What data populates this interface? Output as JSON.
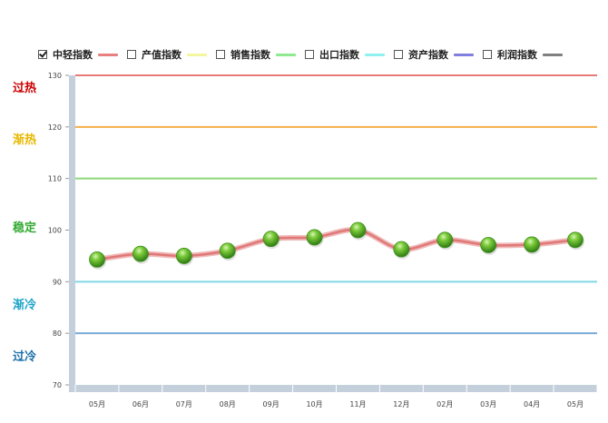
{
  "legend": [
    {
      "label": "中轻指数",
      "checked": true,
      "color": "#e98080"
    },
    {
      "label": "产值指数",
      "checked": false,
      "color": "#f5f5a0"
    },
    {
      "label": "销售指数",
      "checked": false,
      "color": "#90e890"
    },
    {
      "label": "出口指数",
      "checked": false,
      "color": "#90f0f0"
    },
    {
      "label": "资产指数",
      "checked": false,
      "color": "#8080e0"
    },
    {
      "label": "利润指数",
      "checked": false,
      "color": "#808080"
    }
  ],
  "zones": [
    {
      "label": "过热",
      "color": "#cc0000",
      "value": 128
    },
    {
      "label": "渐热",
      "color": "#e6b800",
      "value": 118
    },
    {
      "label": "稳定",
      "color": "#33aa33",
      "value": 101
    },
    {
      "label": "渐冷",
      "color": "#1ca3c8",
      "value": 86
    },
    {
      "label": "过冷",
      "color": "#1a6fa8",
      "value": 76
    }
  ],
  "chart_data": {
    "type": "line",
    "categories": [
      "05月",
      "06月",
      "07月",
      "08月",
      "09月",
      "10月",
      "11月",
      "12月",
      "02月",
      "03月",
      "04月",
      "05月"
    ],
    "series": [
      {
        "name": "中轻指数",
        "values": [
          94.3,
          95.4,
          95.0,
          96.0,
          98.3,
          98.6,
          100.0,
          96.3,
          98.1,
          97.1,
          97.2,
          98.1
        ]
      }
    ],
    "ylim": [
      70,
      130
    ],
    "yticks": [
      70,
      80,
      90,
      100,
      110,
      120,
      130
    ],
    "thresholds": [
      {
        "value": 130,
        "color": "#e87a7a"
      },
      {
        "value": 120,
        "color": "#f5b04a"
      },
      {
        "value": 110,
        "color": "#8ed878"
      },
      {
        "value": 90,
        "color": "#7fd8e8"
      },
      {
        "value": 80,
        "color": "#7aaad8"
      }
    ],
    "line_color": "#e07878",
    "marker_color": "#44aa22",
    "grid": false
  }
}
